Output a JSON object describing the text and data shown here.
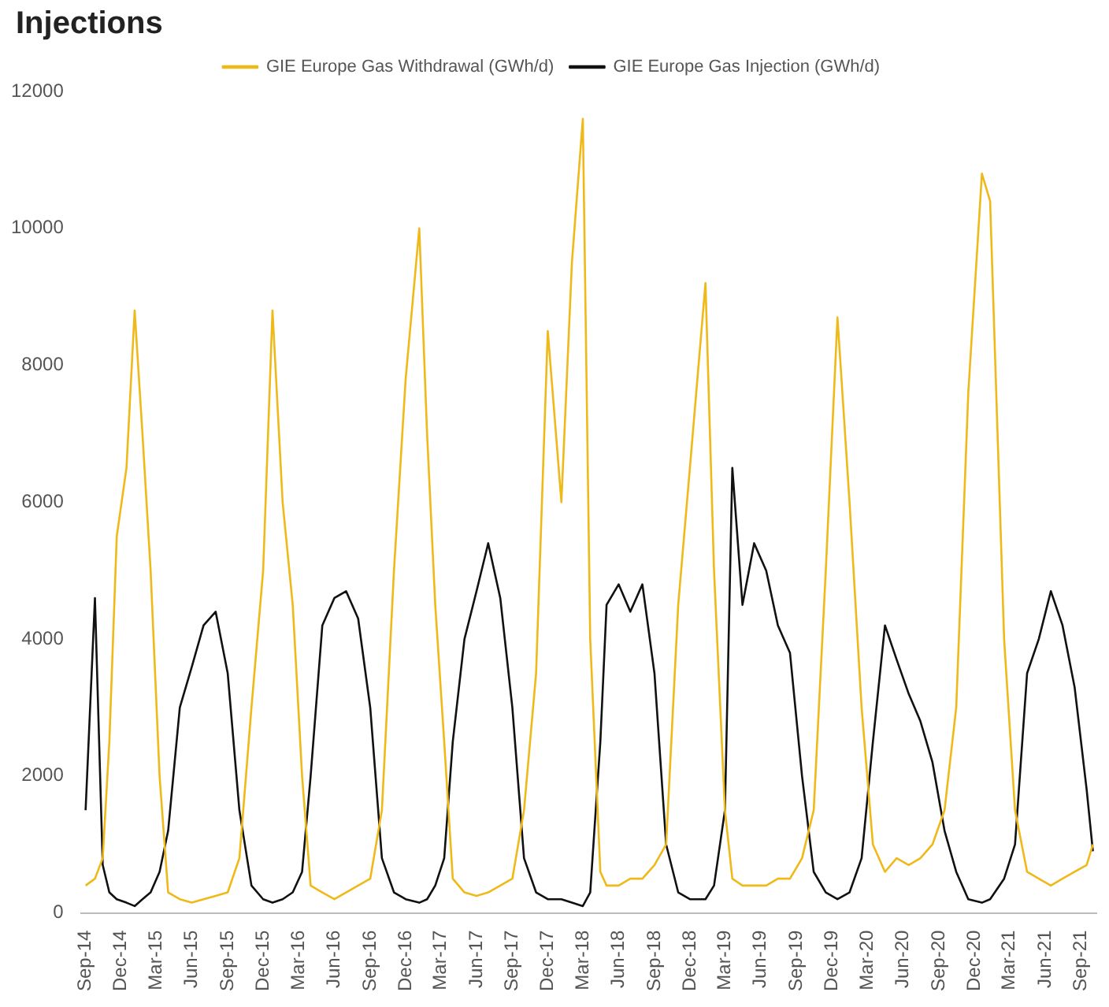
{
  "chart_data": {
    "type": "line",
    "title": "Injections",
    "x": [
      "2014-09-01",
      "2014-09-25",
      "2014-10-15",
      "2014-11-01",
      "2014-11-20",
      "2014-12-15",
      "2015-01-05",
      "2015-01-25",
      "2015-02-15",
      "2015-03-10",
      "2015-04-01",
      "2015-05-01",
      "2015-06-01",
      "2015-07-01",
      "2015-08-01",
      "2015-09-01",
      "2015-10-01",
      "2015-11-01",
      "2015-12-01",
      "2015-12-25",
      "2016-01-20",
      "2016-02-15",
      "2016-03-10",
      "2016-04-01",
      "2016-05-01",
      "2016-06-01",
      "2016-07-01",
      "2016-08-01",
      "2016-09-01",
      "2016-10-01",
      "2016-11-01",
      "2016-12-01",
      "2017-01-05",
      "2017-01-25",
      "2017-02-15",
      "2017-03-10",
      "2017-04-01",
      "2017-05-01",
      "2017-06-01",
      "2017-07-01",
      "2017-08-01",
      "2017-09-01",
      "2017-10-01",
      "2017-11-01",
      "2017-12-01",
      "2018-01-05",
      "2018-02-01",
      "2018-03-01",
      "2018-03-20",
      "2018-04-15",
      "2018-05-01",
      "2018-06-01",
      "2018-07-01",
      "2018-08-01",
      "2018-09-01",
      "2018-10-01",
      "2018-11-01",
      "2018-12-01",
      "2019-01-10",
      "2019-02-01",
      "2019-03-01",
      "2019-03-20",
      "2019-04-15",
      "2019-05-15",
      "2019-06-15",
      "2019-07-15",
      "2019-08-15",
      "2019-09-15",
      "2019-10-15",
      "2019-11-15",
      "2019-12-15",
      "2020-01-15",
      "2020-02-15",
      "2020-03-15",
      "2020-04-15",
      "2020-05-15",
      "2020-06-15",
      "2020-07-15",
      "2020-08-15",
      "2020-09-15",
      "2020-10-15",
      "2020-11-15",
      "2020-12-20",
      "2021-01-10",
      "2021-02-15",
      "2021-03-15",
      "2021-04-15",
      "2021-05-15",
      "2021-06-15",
      "2021-07-15",
      "2021-08-15",
      "2021-09-15",
      "2021-10-01"
    ],
    "series": [
      {
        "name": "GIE Europe Gas Withdrawal (GWh/d)",
        "color": "#f0b91a",
        "values": [
          400,
          500,
          800,
          2500,
          5500,
          6500,
          8800,
          7000,
          5000,
          2000,
          300,
          200,
          150,
          200,
          250,
          300,
          800,
          3000,
          5000,
          8800,
          6000,
          4500,
          2000,
          400,
          300,
          200,
          300,
          400,
          500,
          1500,
          5000,
          7800,
          10000,
          7000,
          4500,
          2500,
          500,
          300,
          250,
          300,
          400,
          500,
          1500,
          3500,
          8500,
          6000,
          9500,
          11600,
          4000,
          600,
          400,
          400,
          500,
          500,
          700,
          1000,
          4500,
          6500,
          9200,
          5000,
          1500,
          500,
          400,
          400,
          400,
          500,
          500,
          800,
          1500,
          5000,
          8700,
          6000,
          3000,
          1000,
          600,
          800,
          700,
          800,
          1000,
          1500,
          3000,
          7600,
          10800,
          10400,
          4000,
          1500,
          600,
          500,
          400,
          500,
          600,
          700,
          1000
        ]
      },
      {
        "name": "GIE Europe Gas Injection (GWh/d)",
        "color": "#111111",
        "values": [
          1500,
          4600,
          700,
          300,
          200,
          150,
          100,
          200,
          300,
          600,
          1200,
          3000,
          3600,
          4200,
          4400,
          3500,
          1500,
          400,
          200,
          150,
          200,
          300,
          600,
          2000,
          4200,
          4600,
          4700,
          4300,
          3000,
          800,
          300,
          200,
          150,
          200,
          400,
          800,
          2500,
          4000,
          4700,
          5400,
          4600,
          3000,
          800,
          300,
          200,
          200,
          150,
          100,
          300,
          2500,
          4500,
          4800,
          4400,
          4800,
          3500,
          1000,
          300,
          200,
          200,
          400,
          1500,
          6500,
          4500,
          5400,
          5000,
          4200,
          3800,
          2000,
          600,
          300,
          200,
          300,
          800,
          2500,
          4200,
          3700,
          3200,
          2800,
          2200,
          1200,
          600,
          200,
          150,
          200,
          500,
          1000,
          3500,
          4000,
          4700,
          4200,
          3300,
          1800,
          900
        ]
      }
    ],
    "xlim": [
      "2014-08-20",
      "2021-10-10"
    ],
    "xticks": [
      {
        "value": "2014-09-01",
        "label": "Sep-14"
      },
      {
        "value": "2014-12-01",
        "label": "Dec-14"
      },
      {
        "value": "2015-03-01",
        "label": "Mar-15"
      },
      {
        "value": "2015-06-01",
        "label": "Jun-15"
      },
      {
        "value": "2015-09-01",
        "label": "Sep-15"
      },
      {
        "value": "2015-12-01",
        "label": "Dec-15"
      },
      {
        "value": "2016-03-01",
        "label": "Mar-16"
      },
      {
        "value": "2016-06-01",
        "label": "Jun-16"
      },
      {
        "value": "2016-09-01",
        "label": "Sep-16"
      },
      {
        "value": "2016-12-01",
        "label": "Dec-16"
      },
      {
        "value": "2017-03-01",
        "label": "Mar-17"
      },
      {
        "value": "2017-06-01",
        "label": "Jun-17"
      },
      {
        "value": "2017-09-01",
        "label": "Sep-17"
      },
      {
        "value": "2017-12-01",
        "label": "Dec-17"
      },
      {
        "value": "2018-03-01",
        "label": "Mar-18"
      },
      {
        "value": "2018-06-01",
        "label": "Jun-18"
      },
      {
        "value": "2018-09-01",
        "label": "Sep-18"
      },
      {
        "value": "2018-12-01",
        "label": "Dec-18"
      },
      {
        "value": "2019-03-01",
        "label": "Mar-19"
      },
      {
        "value": "2019-06-01",
        "label": "Jun-19"
      },
      {
        "value": "2019-09-01",
        "label": "Sep-19"
      },
      {
        "value": "2019-12-01",
        "label": "Dec-19"
      },
      {
        "value": "2020-03-01",
        "label": "Mar-20"
      },
      {
        "value": "2020-06-01",
        "label": "Jun-20"
      },
      {
        "value": "2020-09-01",
        "label": "Sep-20"
      },
      {
        "value": "2020-12-01",
        "label": "Dec-20"
      },
      {
        "value": "2021-03-01",
        "label": "Mar-21"
      },
      {
        "value": "2021-06-01",
        "label": "Jun-21"
      },
      {
        "value": "2021-09-01",
        "label": "Sep-21"
      }
    ],
    "ylim": [
      0,
      12000
    ],
    "yticks": [
      0,
      2000,
      4000,
      6000,
      8000,
      10000,
      12000
    ],
    "grid": false,
    "legend": "top",
    "marker": "none",
    "line_style": "solid"
  }
}
